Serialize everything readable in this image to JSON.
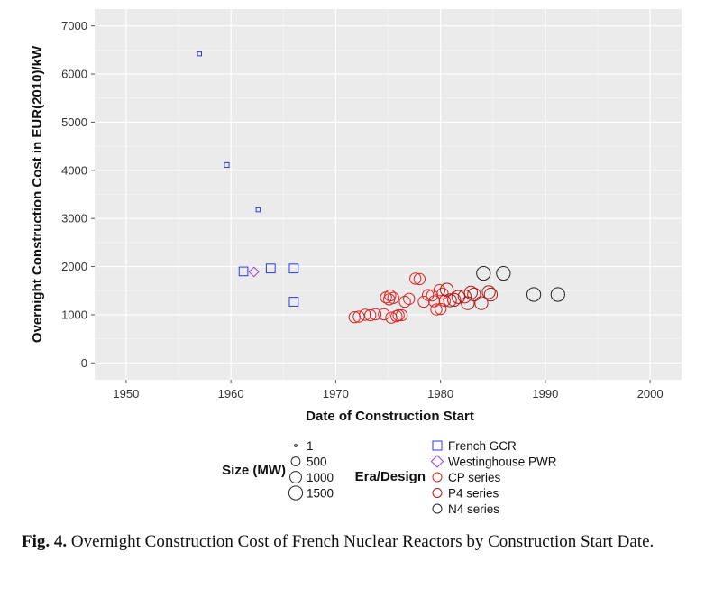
{
  "chart_data": {
    "type": "scatter",
    "title": "",
    "xlabel": "Date of Construction Start",
    "ylabel": "Overnight Construction Cost in EUR(2010)/kW",
    "xlim": [
      1947,
      2003
    ],
    "ylim": [
      -350,
      7350
    ],
    "x_ticks": [
      "1950",
      "1960",
      "1970",
      "1980",
      "1990",
      "2000"
    ],
    "y_ticks": [
      "0",
      "1000",
      "2000",
      "3000",
      "4000",
      "5000",
      "6000",
      "7000"
    ],
    "grid": true,
    "background": "#ebebeb",
    "size_legend": {
      "title": "Size (MW)",
      "entries": [
        "1",
        "500",
        "1000",
        "1500"
      ]
    },
    "era_legend": {
      "title": "Era/Design",
      "entries": [
        {
          "label": "French GCR",
          "shape": "square",
          "color": "#2b3be0"
        },
        {
          "label": "Westinghouse PWR",
          "shape": "diamond",
          "color": "#9b3fe0"
        },
        {
          "label": "CP series",
          "shape": "circle",
          "color": "#e02020"
        },
        {
          "label": "P4 series",
          "shape": "circle",
          "color": "#b01818"
        },
        {
          "label": "N4 series",
          "shape": "circle",
          "color": "#222222"
        }
      ]
    },
    "series": [
      {
        "name": "French GCR",
        "points": [
          {
            "x": 1957.0,
            "y": 6420,
            "size": 40
          },
          {
            "x": 1959.6,
            "y": 4110,
            "size": 70
          },
          {
            "x": 1962.6,
            "y": 3180,
            "size": 40
          },
          {
            "x": 1961.2,
            "y": 1900,
            "size": 480
          },
          {
            "x": 1963.8,
            "y": 1960,
            "size": 500
          },
          {
            "x": 1966.0,
            "y": 1960,
            "size": 500
          },
          {
            "x": 1966.0,
            "y": 1270,
            "size": 500
          }
        ]
      },
      {
        "name": "Westinghouse PWR",
        "points": [
          {
            "x": 1962.2,
            "y": 1890,
            "size": 300
          }
        ]
      },
      {
        "name": "CP series",
        "points": [
          {
            "x": 1971.8,
            "y": 950,
            "size": 900
          },
          {
            "x": 1972.2,
            "y": 960,
            "size": 900
          },
          {
            "x": 1972.8,
            "y": 1000,
            "size": 900
          },
          {
            "x": 1973.3,
            "y": 990,
            "size": 900
          },
          {
            "x": 1973.8,
            "y": 1010,
            "size": 900
          },
          {
            "x": 1974.6,
            "y": 1010,
            "size": 900
          },
          {
            "x": 1974.8,
            "y": 1360,
            "size": 900
          },
          {
            "x": 1975.1,
            "y": 1320,
            "size": 900
          },
          {
            "x": 1975.2,
            "y": 1400,
            "size": 900
          },
          {
            "x": 1975.3,
            "y": 940,
            "size": 900
          },
          {
            "x": 1975.5,
            "y": 1350,
            "size": 900
          },
          {
            "x": 1975.8,
            "y": 970,
            "size": 900
          },
          {
            "x": 1976.0,
            "y": 990,
            "size": 900
          },
          {
            "x": 1976.3,
            "y": 990,
            "size": 900
          },
          {
            "x": 1976.6,
            "y": 1270,
            "size": 900
          },
          {
            "x": 1977.0,
            "y": 1330,
            "size": 900
          },
          {
            "x": 1977.6,
            "y": 1750,
            "size": 900
          },
          {
            "x": 1978.0,
            "y": 1740,
            "size": 900
          },
          {
            "x": 1978.4,
            "y": 1270,
            "size": 900
          },
          {
            "x": 1978.8,
            "y": 1410,
            "size": 900
          },
          {
            "x": 1979.2,
            "y": 1400,
            "size": 900
          },
          {
            "x": 1979.4,
            "y": 1280,
            "size": 900
          },
          {
            "x": 1979.6,
            "y": 1110,
            "size": 900
          },
          {
            "x": 1979.9,
            "y": 1510,
            "size": 900
          },
          {
            "x": 1980.0,
            "y": 1120,
            "size": 900
          },
          {
            "x": 1980.2,
            "y": 1440,
            "size": 900
          },
          {
            "x": 1980.4,
            "y": 1290,
            "size": 900
          }
        ]
      },
      {
        "name": "P4 series",
        "points": [
          {
            "x": 1980.6,
            "y": 1520,
            "size": 1300
          },
          {
            "x": 1980.9,
            "y": 1300,
            "size": 1300
          },
          {
            "x": 1981.3,
            "y": 1310,
            "size": 1300
          },
          {
            "x": 1981.7,
            "y": 1370,
            "size": 1300
          },
          {
            "x": 1982.3,
            "y": 1380,
            "size": 1300
          },
          {
            "x": 1982.6,
            "y": 1240,
            "size": 1300
          },
          {
            "x": 1982.9,
            "y": 1460,
            "size": 1300
          },
          {
            "x": 1983.2,
            "y": 1420,
            "size": 1300
          },
          {
            "x": 1983.9,
            "y": 1240,
            "size": 1300
          },
          {
            "x": 1984.6,
            "y": 1470,
            "size": 1300
          },
          {
            "x": 1984.8,
            "y": 1420,
            "size": 1300
          }
        ]
      },
      {
        "name": "N4 series",
        "points": [
          {
            "x": 1984.1,
            "y": 1860,
            "size": 1500
          },
          {
            "x": 1986.0,
            "y": 1860,
            "size": 1500
          },
          {
            "x": 1988.9,
            "y": 1420,
            "size": 1500
          },
          {
            "x": 1991.2,
            "y": 1420,
            "size": 1500
          }
        ]
      }
    ]
  },
  "caption": {
    "label": "Fig. 4.",
    "text": " Overnight Construction Cost of French Nuclear Reactors by Construction Start Date."
  }
}
